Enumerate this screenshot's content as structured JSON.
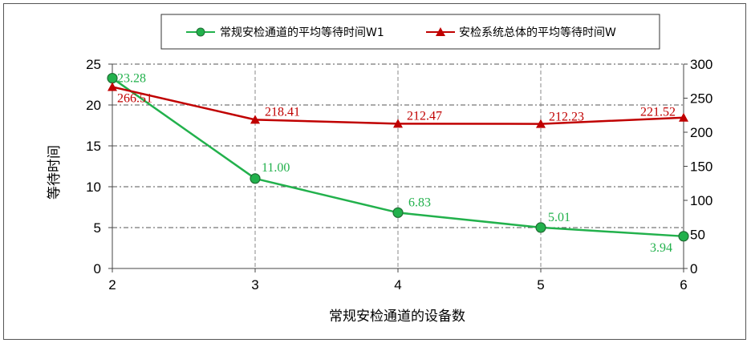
{
  "chart_data": {
    "type": "line",
    "x": [
      2,
      3,
      4,
      5,
      6
    ],
    "xlabel": "常规安检通道的设备数",
    "ylabel": "等待时间",
    "ylim_left": [
      0,
      25
    ],
    "yticks_left": [
      0,
      5,
      10,
      15,
      20,
      25
    ],
    "ylim_right": [
      0,
      300
    ],
    "yticks_right": [
      0,
      50,
      100,
      150,
      200,
      250,
      300
    ],
    "grid": true,
    "legend_position": "top",
    "series": [
      {
        "name": "常规安检通道的平均等待时间W1",
        "axis": "left",
        "color": "#22b14c",
        "marker": "circle",
        "values": [
          23.28,
          11.0,
          6.83,
          5.01,
          3.94
        ],
        "labels": [
          "23.28",
          "11.00",
          "6.83",
          "5.01",
          "3.94"
        ]
      },
      {
        "name": "安检系统总体的平均等待时间W",
        "axis": "right",
        "color": "#c00000",
        "marker": "triangle",
        "values": [
          266.51,
          218.41,
          212.47,
          212.23,
          221.52
        ],
        "labels": [
          "266.51",
          "218.41",
          "212.47",
          "212.23",
          "221.52"
        ]
      }
    ]
  }
}
